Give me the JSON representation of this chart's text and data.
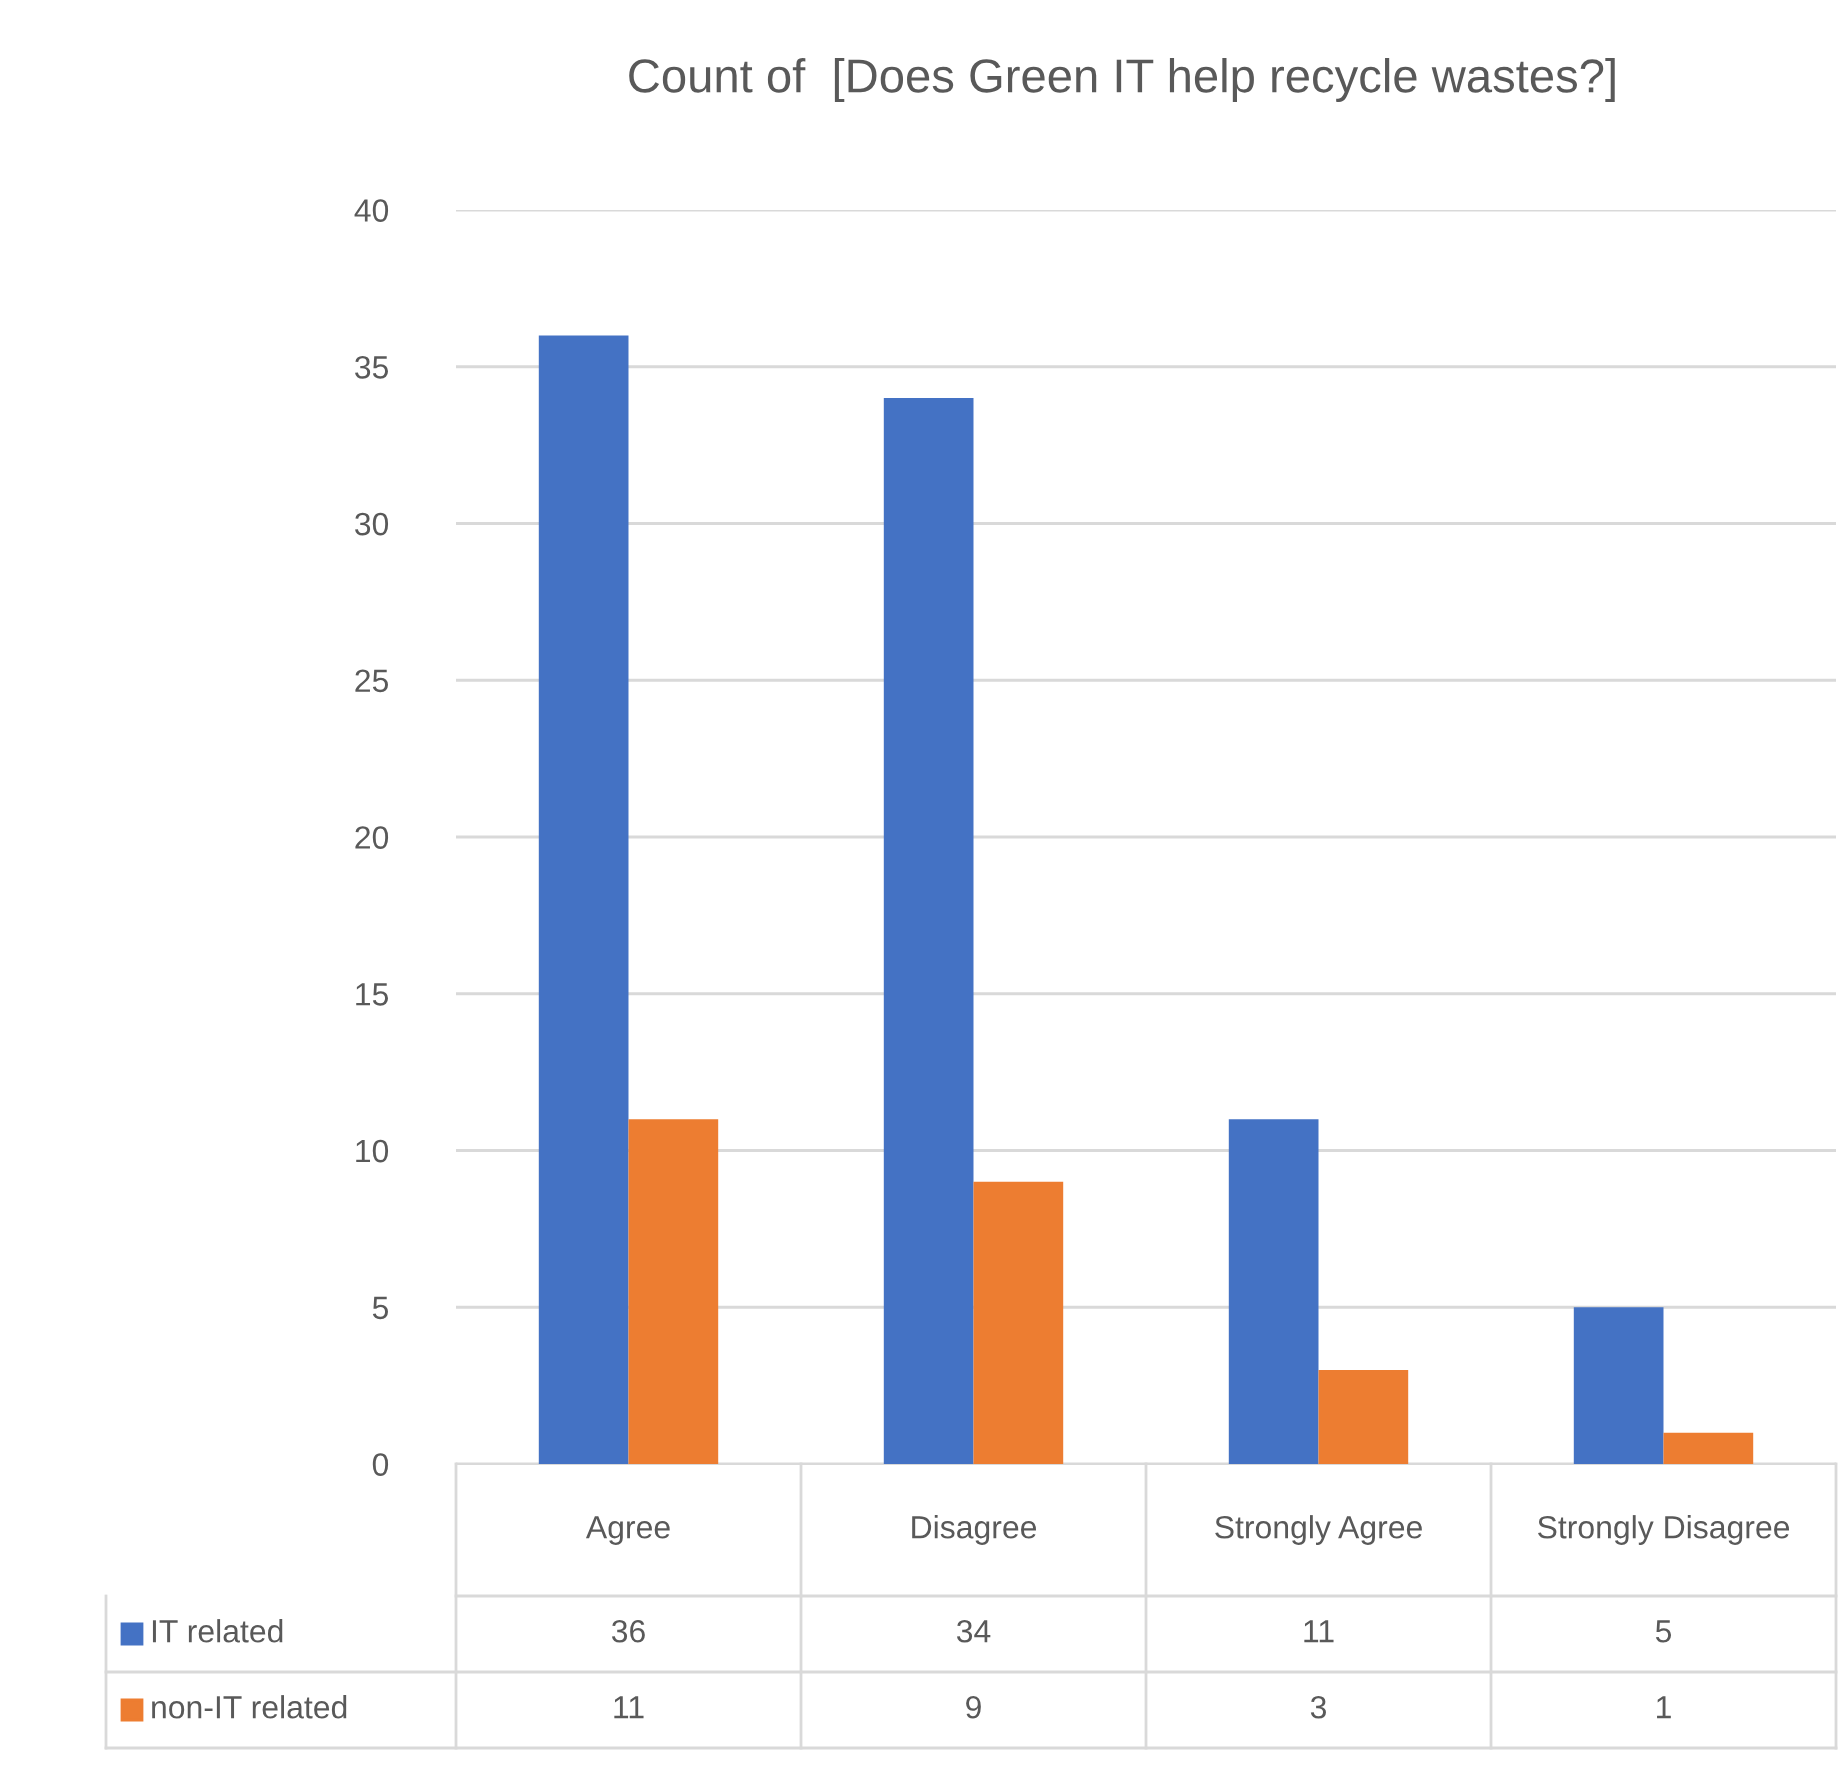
{
  "chart_data": {
    "type": "bar",
    "title": "Count of  [Does Green IT help recycle wastes?]",
    "categories": [
      "Agree",
      "Disagree",
      "Strongly Agree",
      "Strongly Disagree"
    ],
    "series": [
      {
        "name": "IT related",
        "color": "#4472c4",
        "values": [
          36,
          34,
          11,
          5
        ]
      },
      {
        "name": "non-IT related",
        "color": "#ed7d31",
        "values": [
          11,
          9,
          3,
          1
        ]
      }
    ],
    "ylim": [
      0,
      40
    ],
    "yticks": [
      0,
      5,
      10,
      15,
      20,
      25,
      30,
      35,
      40
    ],
    "grid": "y",
    "data_labels": true,
    "legend": "bottom"
  }
}
